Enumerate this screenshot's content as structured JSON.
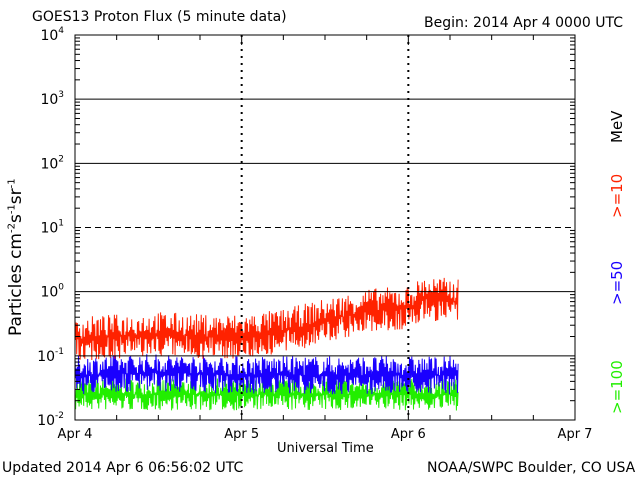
{
  "header": {
    "title": "GOES13 Proton Flux (5 minute data)",
    "begin": "Begin: 2014 Apr 4 0000 UTC"
  },
  "footer": {
    "updated": "Updated 2014 Apr  6 06:56:02 UTC",
    "credit": "NOAA/SWPC Boulder, CO USA"
  },
  "legend": {
    "unit": "MeV",
    "entries": [
      {
        "label": ">=10",
        "color": "#ff2200"
      },
      {
        "label": ">=50",
        "color": "#1a00ff"
      },
      {
        "label": ">=100",
        "color": "#22ee00"
      }
    ]
  },
  "chart_data": {
    "type": "line",
    "title": "GOES13 Proton Flux (5 minute data)",
    "xlabel": "Universal Time",
    "ylabel": "Particles cm-2 s-1 sr-1",
    "y_scale": "log",
    "ylim": [
      0.01,
      10000
    ],
    "xlim_days": [
      0,
      3
    ],
    "x_tick_labels": [
      "Apr 4",
      "Apr 5",
      "Apr 6",
      "Apr 7"
    ],
    "y_ticks": [
      {
        "value": 0.01,
        "base": "10",
        "exp": "-2"
      },
      {
        "value": 0.1,
        "base": "10",
        "exp": "-1"
      },
      {
        "value": 1,
        "base": "10",
        "exp": "0"
      },
      {
        "value": 10,
        "base": "10",
        "exp": "1"
      },
      {
        "value": 100,
        "base": "10",
        "exp": "2"
      },
      {
        "value": 1000,
        "base": "10",
        "exp": "3"
      },
      {
        "value": 10000,
        "base": "10",
        "exp": "4"
      }
    ],
    "threshold_line": 10,
    "series": [
      {
        "name": ">=10 MeV",
        "color": "#ff2200",
        "x": [
          0,
          0.25,
          0.5,
          0.75,
          1.0,
          1.25,
          1.5,
          1.75,
          2.0,
          2.1,
          2.3
        ],
        "y": [
          0.18,
          0.2,
          0.22,
          0.2,
          0.2,
          0.24,
          0.35,
          0.5,
          0.55,
          0.8,
          0.7
        ]
      },
      {
        "name": ">=50 MeV",
        "color": "#1a00ff",
        "x": [
          0,
          0.5,
          1.0,
          1.5,
          2.0,
          2.3
        ],
        "y": [
          0.05,
          0.055,
          0.05,
          0.05,
          0.05,
          0.05
        ]
      },
      {
        "name": ">=100 MeV",
        "color": "#22ee00",
        "x": [
          0,
          0.5,
          1.0,
          1.5,
          2.0,
          2.3
        ],
        "y": [
          0.025,
          0.025,
          0.025,
          0.025,
          0.025,
          0.025
        ]
      }
    ]
  }
}
